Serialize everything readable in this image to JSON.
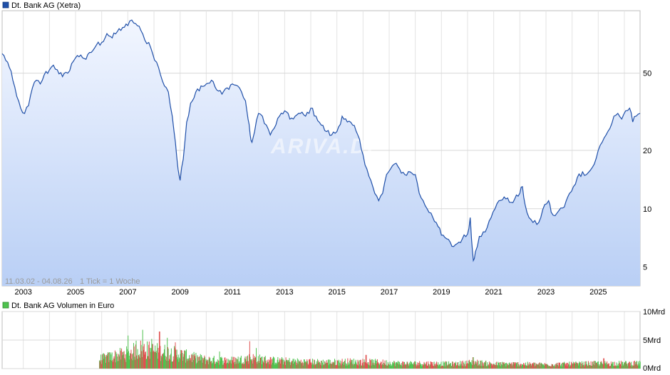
{
  "chart_data": [
    {
      "type": "area",
      "legend_label": "Dt. Bank AG (Xetra)",
      "line_color": "#1f4fa8",
      "fill_top": "#f2f6ff",
      "fill_bottom": "#b9cff5",
      "y_scale": "log",
      "ylim": [
        4,
        105
      ],
      "y_ticks": [
        {
          "value": 5,
          "label": "5"
        },
        {
          "value": 10,
          "label": "10"
        },
        {
          "value": 20,
          "label": "20"
        },
        {
          "value": 50,
          "label": "50"
        }
      ],
      "xlim": [
        2002.19,
        2026.6
      ],
      "x_ticks": [
        {
          "value": 2003,
          "label": "2003"
        },
        {
          "value": 2005,
          "label": "2005"
        },
        {
          "value": 2007,
          "label": "2007"
        },
        {
          "value": 2009,
          "label": "2009"
        },
        {
          "value": 2011,
          "label": "2011"
        },
        {
          "value": 2013,
          "label": "2013"
        },
        {
          "value": 2015,
          "label": "2015"
        },
        {
          "value": 2017,
          "label": "2017"
        },
        {
          "value": 2019,
          "label": "2019"
        },
        {
          "value": 2021,
          "label": "2021"
        },
        {
          "value": 2023,
          "label": "2023"
        },
        {
          "value": 2025,
          "label": "2025"
        }
      ],
      "date_range_label": "11.03.02 - 04.08.26",
      "tick_info_label": "1 Tick = 1 Woche",
      "watermark": "ARIVA.DE",
      "grid": true,
      "points": [
        [
          2002.19,
          63
        ],
        [
          2002.4,
          57
        ],
        [
          2002.6,
          46
        ],
        [
          2002.75,
          38
        ],
        [
          2002.9,
          33
        ],
        [
          2003.05,
          31
        ],
        [
          2003.2,
          34
        ],
        [
          2003.35,
          42
        ],
        [
          2003.5,
          46
        ],
        [
          2003.65,
          44
        ],
        [
          2003.8,
          49
        ],
        [
          2004.0,
          52
        ],
        [
          2004.15,
          55
        ],
        [
          2004.3,
          52
        ],
        [
          2004.5,
          48
        ],
        [
          2004.7,
          50
        ],
        [
          2004.85,
          56
        ],
        [
          2005.0,
          60
        ],
        [
          2005.2,
          62
        ],
        [
          2005.4,
          59
        ],
        [
          2005.6,
          64
        ],
        [
          2005.8,
          70
        ],
        [
          2006.0,
          72
        ],
        [
          2006.2,
          80
        ],
        [
          2006.4,
          76
        ],
        [
          2006.6,
          82
        ],
        [
          2006.8,
          86
        ],
        [
          2007.0,
          88
        ],
        [
          2007.15,
          94
        ],
        [
          2007.3,
          90
        ],
        [
          2007.5,
          83
        ],
        [
          2007.65,
          74
        ],
        [
          2007.8,
          72
        ],
        [
          2007.95,
          63
        ],
        [
          2008.1,
          57
        ],
        [
          2008.25,
          49
        ],
        [
          2008.4,
          43
        ],
        [
          2008.55,
          40
        ],
        [
          2008.7,
          30
        ],
        [
          2008.82,
          22
        ],
        [
          2008.92,
          16
        ],
        [
          2009.0,
          14
        ],
        [
          2009.12,
          18
        ],
        [
          2009.25,
          28
        ],
        [
          2009.4,
          35
        ],
        [
          2009.6,
          40
        ],
        [
          2009.8,
          43
        ],
        [
          2010.0,
          44
        ],
        [
          2010.2,
          46
        ],
        [
          2010.4,
          41
        ],
        [
          2010.6,
          39
        ],
        [
          2010.8,
          42
        ],
        [
          2011.0,
          44
        ],
        [
          2011.2,
          43
        ],
        [
          2011.35,
          40
        ],
        [
          2011.5,
          36
        ],
        [
          2011.6,
          29
        ],
        [
          2011.68,
          24
        ],
        [
          2011.75,
          22
        ],
        [
          2011.85,
          25
        ],
        [
          2012.0,
          31
        ],
        [
          2012.15,
          30
        ],
        [
          2012.3,
          27
        ],
        [
          2012.45,
          24
        ],
        [
          2012.6,
          26
        ],
        [
          2012.8,
          30
        ],
        [
          2013.0,
          32
        ],
        [
          2013.2,
          29
        ],
        [
          2013.4,
          30
        ],
        [
          2013.6,
          31
        ],
        [
          2013.8,
          30
        ],
        [
          2014.0,
          33
        ],
        [
          2014.2,
          30
        ],
        [
          2014.4,
          27
        ],
        [
          2014.6,
          25
        ],
        [
          2014.8,
          24
        ],
        [
          2015.0,
          25
        ],
        [
          2015.2,
          30
        ],
        [
          2015.4,
          28
        ],
        [
          2015.6,
          27
        ],
        [
          2015.8,
          24
        ],
        [
          2016.0,
          19
        ],
        [
          2016.15,
          16
        ],
        [
          2016.3,
          14
        ],
        [
          2016.45,
          12
        ],
        [
          2016.6,
          11
        ],
        [
          2016.75,
          12
        ],
        [
          2016.9,
          15
        ],
        [
          2017.05,
          16
        ],
        [
          2017.2,
          17
        ],
        [
          2017.4,
          16
        ],
        [
          2017.6,
          15
        ],
        [
          2017.8,
          15.5
        ],
        [
          2018.0,
          15
        ],
        [
          2018.15,
          12
        ],
        [
          2018.3,
          11
        ],
        [
          2018.45,
          10
        ],
        [
          2018.6,
          9.5
        ],
        [
          2018.8,
          8.5
        ],
        [
          2019.0,
          7.3
        ],
        [
          2019.2,
          7.0
        ],
        [
          2019.4,
          6.4
        ],
        [
          2019.6,
          6.6
        ],
        [
          2019.8,
          7.0
        ],
        [
          2020.0,
          7.4
        ],
        [
          2020.1,
          9.0
        ],
        [
          2020.15,
          7.0
        ],
        [
          2020.22,
          5.4
        ],
        [
          2020.3,
          6.0
        ],
        [
          2020.45,
          7.2
        ],
        [
          2020.6,
          7.6
        ],
        [
          2020.75,
          8.0
        ],
        [
          2020.9,
          9.0
        ],
        [
          2021.05,
          10.0
        ],
        [
          2021.2,
          11.0
        ],
        [
          2021.4,
          11.5
        ],
        [
          2021.6,
          10.8
        ],
        [
          2021.8,
          11.2
        ],
        [
          2022.0,
          12.0
        ],
        [
          2022.1,
          13.0
        ],
        [
          2022.2,
          10.5
        ],
        [
          2022.35,
          9.0
        ],
        [
          2022.5,
          8.5
        ],
        [
          2022.65,
          8.3
        ],
        [
          2022.8,
          9.0
        ],
        [
          2022.95,
          10.5
        ],
        [
          2023.1,
          11.0
        ],
        [
          2023.2,
          9.6
        ],
        [
          2023.35,
          9.2
        ],
        [
          2023.5,
          9.8
        ],
        [
          2023.7,
          10.2
        ],
        [
          2023.9,
          12.0
        ],
        [
          2024.05,
          13.0
        ],
        [
          2024.2,
          14.5
        ],
        [
          2024.4,
          15.5
        ],
        [
          2024.55,
          15.0
        ],
        [
          2024.7,
          15.8
        ],
        [
          2024.85,
          17.0
        ],
        [
          2025.0,
          20.0
        ],
        [
          2025.15,
          22.0
        ],
        [
          2025.3,
          24.0
        ],
        [
          2025.45,
          26.0
        ],
        [
          2025.6,
          30.0
        ],
        [
          2025.75,
          31.0
        ],
        [
          2025.9,
          29.0
        ],
        [
          2026.05,
          32.0
        ],
        [
          2026.2,
          33.0
        ],
        [
          2026.32,
          28.0
        ],
        [
          2026.45,
          30.0
        ],
        [
          2026.6,
          31.0
        ]
      ]
    },
    {
      "type": "bar",
      "legend_label": "Dt. Bank AG Volumen in Euro",
      "ylim": [
        0,
        10
      ],
      "y_ticks": [
        {
          "value": 0,
          "label": "0Mrd"
        },
        {
          "value": 5,
          "label": "5Mrd"
        },
        {
          "value": 10,
          "label": "10Mrd"
        }
      ],
      "up_color": "#4fc24f",
      "down_color": "#e05050",
      "volume_start": 2005.9,
      "volume_profile": [
        [
          2005.9,
          1.6
        ],
        [
          2006.5,
          2.2
        ],
        [
          2007.0,
          2.6
        ],
        [
          2007.5,
          3.4
        ],
        [
          2008.0,
          3.0
        ],
        [
          2008.5,
          2.8
        ],
        [
          2009.0,
          2.4
        ],
        [
          2009.5,
          1.9
        ],
        [
          2010.0,
          1.5
        ],
        [
          2011.0,
          1.4
        ],
        [
          2011.7,
          1.8
        ],
        [
          2012.5,
          1.4
        ],
        [
          2013.5,
          1.2
        ],
        [
          2014.5,
          1.1
        ],
        [
          2015.5,
          1.2
        ],
        [
          2016.5,
          1.1
        ],
        [
          2017.5,
          0.9
        ],
        [
          2018.5,
          0.9
        ],
        [
          2019.5,
          0.8
        ],
        [
          2020.2,
          1.1
        ],
        [
          2021.0,
          0.8
        ],
        [
          2022.0,
          0.8
        ],
        [
          2023.0,
          0.7
        ],
        [
          2024.0,
          0.8
        ],
        [
          2025.0,
          0.9
        ],
        [
          2026.6,
          0.9
        ]
      ],
      "volume_spikes": [
        [
          2007.0,
          5.8
        ],
        [
          2007.3,
          4.9
        ],
        [
          2007.55,
          6.8
        ],
        [
          2007.9,
          5.2
        ],
        [
          2008.2,
          6.5
        ],
        [
          2008.5,
          5.4
        ],
        [
          2008.8,
          4.6
        ],
        [
          2011.65,
          4.8
        ],
        [
          2010.5,
          3.0
        ],
        [
          2011.9,
          3.6
        ],
        [
          2016.1,
          2.4
        ],
        [
          2020.2,
          2.0
        ],
        [
          2025.2,
          1.8
        ]
      ]
    }
  ]
}
